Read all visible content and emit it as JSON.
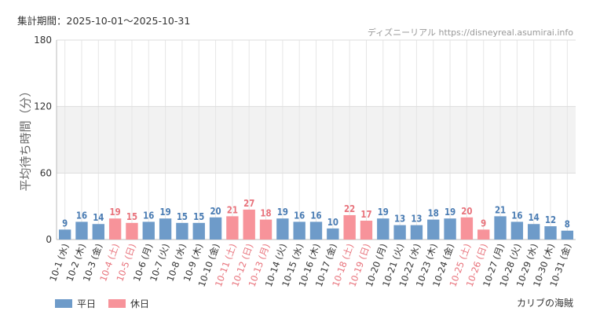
{
  "header": {
    "period": "集計期間：2025-10-01～2025-10-31",
    "credit": "ディズニーリアル https://disneyreal.asumirai.info"
  },
  "footer": {
    "attraction": "カリブの海賊"
  },
  "colors": {
    "weekday": "#6e9bc9",
    "holiday": "#f7939a",
    "weekday_label": "#4a7cb3",
    "holiday_label": "#e8737c",
    "grid": "#e6e6e6",
    "band": "#f2f2f2"
  },
  "chart_data": {
    "type": "bar",
    "ylabel": "平均待ち時間（分）",
    "ylim": [
      0,
      180
    ],
    "yticks": [
      0,
      60,
      120,
      180
    ],
    "grid": true,
    "legend_position": "bottom-left",
    "legend": [
      {
        "name": "平日",
        "color": "#6e9bc9"
      },
      {
        "name": "休日",
        "color": "#f7939a"
      }
    ],
    "categories": [
      "10-1 (水)",
      "10-2 (木)",
      "10-3 (金)",
      "10-4 (土)",
      "10-5 (日)",
      "10-6 (月)",
      "10-7 (火)",
      "10-8 (水)",
      "10-9 (木)",
      "10-10 (金)",
      "10-11 (土)",
      "10-12 (日)",
      "10-13 (月)",
      "10-14 (火)",
      "10-15 (水)",
      "10-16 (木)",
      "10-17 (金)",
      "10-18 (土)",
      "10-19 (日)",
      "10-20 (月)",
      "10-21 (火)",
      "10-22 (水)",
      "10-23 (木)",
      "10-24 (金)",
      "10-25 (土)",
      "10-26 (日)",
      "10-27 (月)",
      "10-28 (火)",
      "10-29 (水)",
      "10-30 (木)",
      "10-31 (金)"
    ],
    "values": [
      9,
      16,
      14,
      19,
      15,
      16,
      19,
      15,
      15,
      20,
      21,
      27,
      18,
      19,
      16,
      16,
      10,
      22,
      17,
      19,
      13,
      13,
      18,
      19,
      20,
      9,
      21,
      16,
      14,
      12,
      8
    ],
    "day_type": [
      "平日",
      "平日",
      "平日",
      "休日",
      "休日",
      "平日",
      "平日",
      "平日",
      "平日",
      "平日",
      "休日",
      "休日",
      "休日",
      "平日",
      "平日",
      "平日",
      "平日",
      "休日",
      "休日",
      "平日",
      "平日",
      "平日",
      "平日",
      "平日",
      "休日",
      "休日",
      "平日",
      "平日",
      "平日",
      "平日",
      "平日"
    ]
  }
}
